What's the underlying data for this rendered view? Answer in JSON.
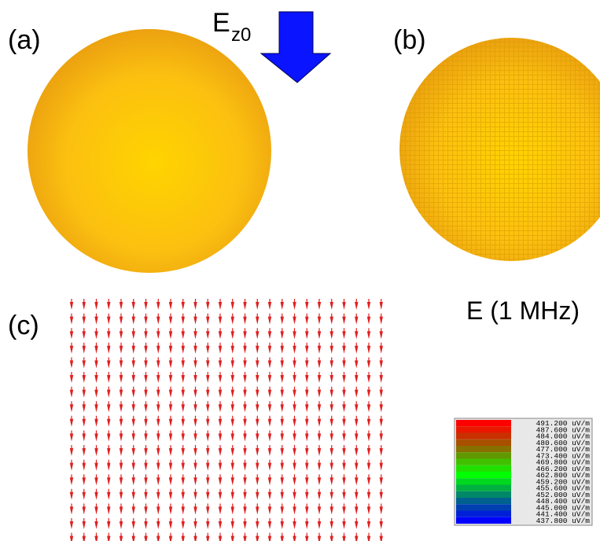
{
  "labels": {
    "a": "(a)",
    "b": "(b)",
    "c": "(c)"
  },
  "field": {
    "symbol": "E",
    "subscript": "z0"
  },
  "colorbar": {
    "title": "E (1 MHz)",
    "entries": [
      {
        "label": "491.200 uV/m",
        "color": "#ff0000"
      },
      {
        "label": "487.600 uV/m",
        "color": "#e81800"
      },
      {
        "label": "484.000 uV/m",
        "color": "#c83000"
      },
      {
        "label": "480.600 uV/m",
        "color": "#a85000"
      },
      {
        "label": "477.000 uV/m",
        "color": "#887000"
      },
      {
        "label": "473.400 uV/m",
        "color": "#609800"
      },
      {
        "label": "469.800 uV/m",
        "color": "#40c000"
      },
      {
        "label": "466.200 uV/m",
        "color": "#20e000"
      },
      {
        "label": "462.800 uV/m",
        "color": "#00ff00"
      },
      {
        "label": "459.200 uV/m",
        "color": "#00d820"
      },
      {
        "label": "455.600 uV/m",
        "color": "#00b040"
      },
      {
        "label": "452.000 uV/m",
        "color": "#008868"
      },
      {
        "label": "448.400 uV/m",
        "color": "#006090"
      },
      {
        "label": "445.000 uV/m",
        "color": "#0040b0"
      },
      {
        "label": "441.400 uV/m",
        "color": "#0020d8"
      },
      {
        "label": "437.800 uV/m",
        "color": "#0000ff"
      }
    ]
  }
}
